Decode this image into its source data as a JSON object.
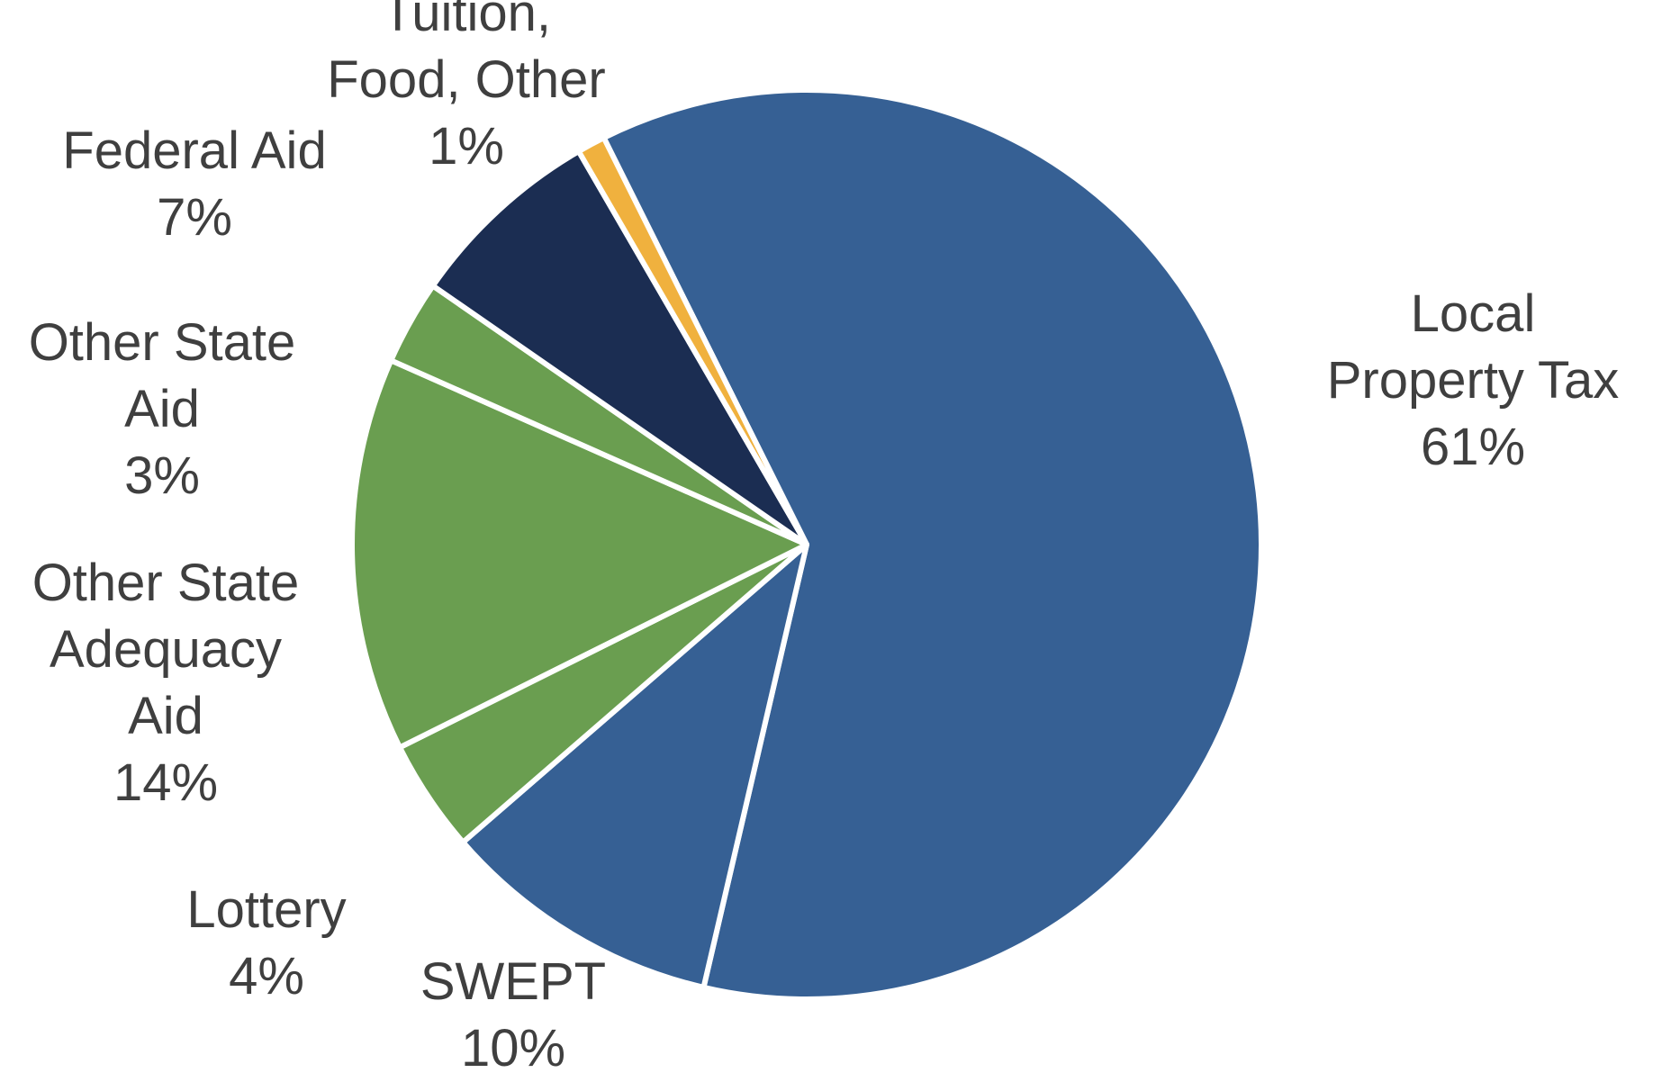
{
  "chart_data": {
    "type": "pie",
    "slices": [
      {
        "name": "Local Property Tax",
        "label_lines": [
          "Local",
          "Property Tax"
        ],
        "percent_label": "61%",
        "value": 61,
        "color": "#366094"
      },
      {
        "name": "SWEPT",
        "label_lines": [
          "SWEPT"
        ],
        "percent_label": "10%",
        "value": 10,
        "color": "#366094"
      },
      {
        "name": "Lottery",
        "label_lines": [
          "Lottery"
        ],
        "percent_label": "4%",
        "value": 4,
        "color": "#6a9e50"
      },
      {
        "name": "Other State Adequacy Aid",
        "label_lines": [
          "Other State",
          "Adequacy",
          "Aid"
        ],
        "percent_label": "14%",
        "value": 14,
        "color": "#6a9e50"
      },
      {
        "name": "Other State Aid",
        "label_lines": [
          "Other State",
          "Aid"
        ],
        "percent_label": "3%",
        "value": 3,
        "color": "#6a9e50"
      },
      {
        "name": "Federal Aid",
        "label_lines": [
          "Federal Aid"
        ],
        "percent_label": "7%",
        "value": 7,
        "color": "#1b2d52"
      },
      {
        "name": "Tuition, Food, Other",
        "label_lines": [
          "Tuition,",
          "Food, Other"
        ],
        "percent_label": "1%",
        "value": 1,
        "color": "#f0b13e"
      }
    ],
    "start_slice": "Local Property Tax",
    "direction": "clockwise",
    "legend": "none"
  }
}
